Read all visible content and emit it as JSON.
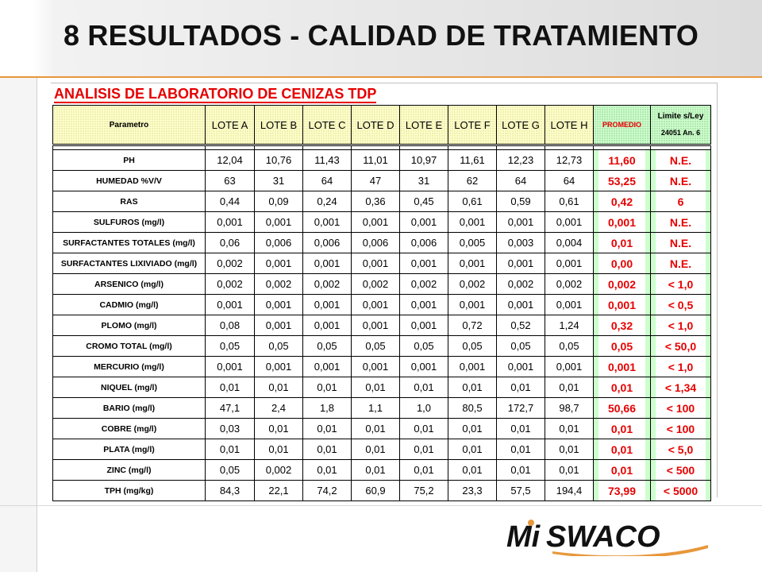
{
  "slide": {
    "title": "8 RESULTADOS - CALIDAD DE TRATAMIENTO"
  },
  "sheet": {
    "title": "ANALISIS DE LABORATORIO DE CENIZAS TDP",
    "headers": {
      "parametro": "Parametro",
      "lotes": [
        "LOTE A",
        "LOTE B",
        "LOTE C",
        "LOTE D",
        "LOTE E",
        "LOTE F",
        "LOTE G",
        "LOTE H"
      ],
      "promedio": "PROMEDIO",
      "limite_line1": "Limite s/Ley",
      "limite_line2": "24051 An. 6"
    },
    "rows": [
      {
        "param": "PH",
        "values": [
          "12,04",
          "10,76",
          "11,43",
          "11,01",
          "10,97",
          "11,61",
          "12,23",
          "12,73"
        ],
        "promedio": "11,60",
        "limite": "N.E."
      },
      {
        "param": "HUMEDAD %V/V",
        "values": [
          "63",
          "31",
          "64",
          "47",
          "31",
          "62",
          "64",
          "64"
        ],
        "promedio": "53,25",
        "limite": "N.E."
      },
      {
        "param": "RAS",
        "values": [
          "0,44",
          "0,09",
          "0,24",
          "0,36",
          "0,45",
          "0,61",
          "0,59",
          "0,61"
        ],
        "promedio": "0,42",
        "limite": "6"
      },
      {
        "param": "SULFUROS (mg/l)",
        "values": [
          "0,001",
          "0,001",
          "0,001",
          "0,001",
          "0,001",
          "0,001",
          "0,001",
          "0,001"
        ],
        "promedio": "0,001",
        "limite": "N.E."
      },
      {
        "param": "SURFACTANTES TOTALES (mg/l)",
        "values": [
          "0,06",
          "0,006",
          "0,006",
          "0,006",
          "0,006",
          "0,005",
          "0,003",
          "0,004"
        ],
        "promedio": "0,01",
        "limite": "N.E."
      },
      {
        "param": "SURFACTANTES LIXIVIADO (mg/l)",
        "values": [
          "0,002",
          "0,001",
          "0,001",
          "0,001",
          "0,001",
          "0,001",
          "0,001",
          "0,001"
        ],
        "promedio": "0,00",
        "limite": "N.E."
      },
      {
        "param": "ARSENICO (mg/l)",
        "values": [
          "0,002",
          "0,002",
          "0,002",
          "0,002",
          "0,002",
          "0,002",
          "0,002",
          "0,002"
        ],
        "promedio": "0,002",
        "limite": "< 1,0"
      },
      {
        "param": "CADMIO (mg/l)",
        "values": [
          "0,001",
          "0,001",
          "0,001",
          "0,001",
          "0,001",
          "0,001",
          "0,001",
          "0,001"
        ],
        "promedio": "0,001",
        "limite": "< 0,5"
      },
      {
        "param": "PLOMO (mg/l)",
        "values": [
          "0,08",
          "0,001",
          "0,001",
          "0,001",
          "0,001",
          "0,72",
          "0,52",
          "1,24"
        ],
        "promedio": "0,32",
        "limite": "< 1,0"
      },
      {
        "param": "CROMO TOTAL (mg/l)",
        "values": [
          "0,05",
          "0,05",
          "0,05",
          "0,05",
          "0,05",
          "0,05",
          "0,05",
          "0,05"
        ],
        "promedio": "0,05",
        "limite": "< 50,0"
      },
      {
        "param": "MERCURIO (mg/l)",
        "values": [
          "0,001",
          "0,001",
          "0,001",
          "0,001",
          "0,001",
          "0,001",
          "0,001",
          "0,001"
        ],
        "promedio": "0,001",
        "limite": "< 1,0"
      },
      {
        "param": "NIQUEL (mg/l)",
        "values": [
          "0,01",
          "0,01",
          "0,01",
          "0,01",
          "0,01",
          "0,01",
          "0,01",
          "0,01"
        ],
        "promedio": "0,01",
        "limite": "< 1,34"
      },
      {
        "param": "BARIO (mg/l)",
        "values": [
          "47,1",
          "2,4",
          "1,8",
          "1,1",
          "1,0",
          "80,5",
          "172,7",
          "98,7"
        ],
        "promedio": "50,66",
        "limite": "< 100"
      },
      {
        "param": "COBRE (mg/l)",
        "values": [
          "0,03",
          "0,01",
          "0,01",
          "0,01",
          "0,01",
          "0,01",
          "0,01",
          "0,01"
        ],
        "promedio": "0,01",
        "limite": "< 100"
      },
      {
        "param": "PLATA (mg/l)",
        "values": [
          "0,01",
          "0,01",
          "0,01",
          "0,01",
          "0,01",
          "0,01",
          "0,01",
          "0,01"
        ],
        "promedio": "0,01",
        "limite": "< 5,0"
      },
      {
        "param": "ZINC (mg/l)",
        "values": [
          "0,05",
          "0,002",
          "0,01",
          "0,01",
          "0,01",
          "0,01",
          "0,01",
          "0,01"
        ],
        "promedio": "0,01",
        "limite": "< 500"
      },
      {
        "param": "TPH (mg/kg)",
        "values": [
          "84,3",
          "22,1",
          "74,2",
          "60,9",
          "75,2",
          "23,3",
          "57,5",
          "194,4"
        ],
        "promedio": "73,99",
        "limite": "< 5000"
      }
    ]
  },
  "logo": {
    "text": "MI SWACO",
    "colors": {
      "primary": "#111111",
      "accent": "#e8973a"
    }
  },
  "colors": {
    "title_red": "#e60000",
    "header_yellow": "#ffffcc",
    "header_green": "#ccffcc",
    "orange_rule": "#e8973a"
  }
}
